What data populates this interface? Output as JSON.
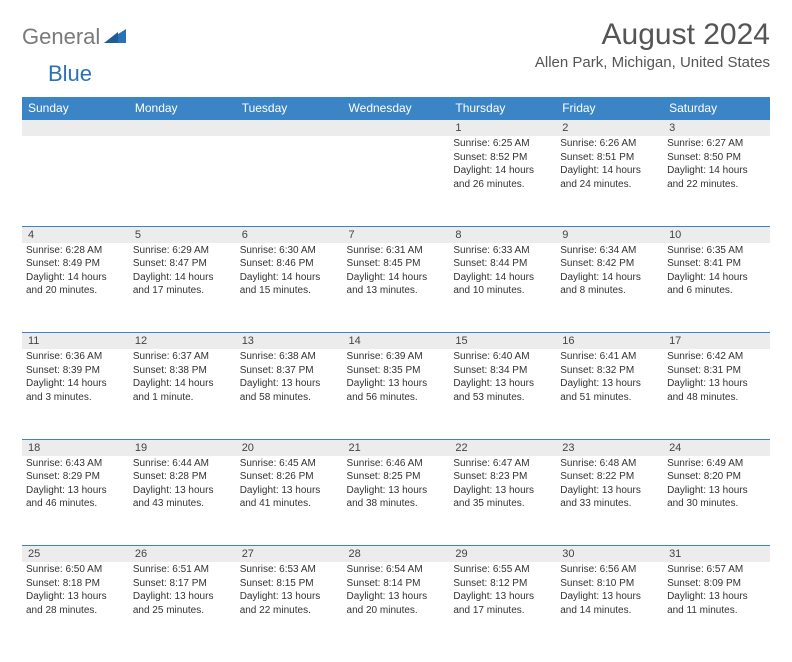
{
  "logo": {
    "gray": "General",
    "blue": "Blue"
  },
  "title": "August 2024",
  "location": "Allen Park, Michigan, United States",
  "colors": {
    "header_bg": "#3b85c6",
    "header_text": "#ffffff",
    "daynum_bg": "#ececec",
    "divider": "#3b85c6",
    "text": "#333333",
    "logo_gray": "#7a7a7a",
    "logo_blue": "#2a72b5"
  },
  "weekdays": [
    "Sunday",
    "Monday",
    "Tuesday",
    "Wednesday",
    "Thursday",
    "Friday",
    "Saturday"
  ],
  "weeks": [
    {
      "nums": [
        "",
        "",
        "",
        "",
        "1",
        "2",
        "3"
      ],
      "cells": [
        null,
        null,
        null,
        null,
        {
          "sunrise": "6:25 AM",
          "sunset": "8:52 PM",
          "daylight": "14 hours and 26 minutes."
        },
        {
          "sunrise": "6:26 AM",
          "sunset": "8:51 PM",
          "daylight": "14 hours and 24 minutes."
        },
        {
          "sunrise": "6:27 AM",
          "sunset": "8:50 PM",
          "daylight": "14 hours and 22 minutes."
        }
      ]
    },
    {
      "nums": [
        "4",
        "5",
        "6",
        "7",
        "8",
        "9",
        "10"
      ],
      "cells": [
        {
          "sunrise": "6:28 AM",
          "sunset": "8:49 PM",
          "daylight": "14 hours and 20 minutes."
        },
        {
          "sunrise": "6:29 AM",
          "sunset": "8:47 PM",
          "daylight": "14 hours and 17 minutes."
        },
        {
          "sunrise": "6:30 AM",
          "sunset": "8:46 PM",
          "daylight": "14 hours and 15 minutes."
        },
        {
          "sunrise": "6:31 AM",
          "sunset": "8:45 PM",
          "daylight": "14 hours and 13 minutes."
        },
        {
          "sunrise": "6:33 AM",
          "sunset": "8:44 PM",
          "daylight": "14 hours and 10 minutes."
        },
        {
          "sunrise": "6:34 AM",
          "sunset": "8:42 PM",
          "daylight": "14 hours and 8 minutes."
        },
        {
          "sunrise": "6:35 AM",
          "sunset": "8:41 PM",
          "daylight": "14 hours and 6 minutes."
        }
      ]
    },
    {
      "nums": [
        "11",
        "12",
        "13",
        "14",
        "15",
        "16",
        "17"
      ],
      "cells": [
        {
          "sunrise": "6:36 AM",
          "sunset": "8:39 PM",
          "daylight": "14 hours and 3 minutes."
        },
        {
          "sunrise": "6:37 AM",
          "sunset": "8:38 PM",
          "daylight": "14 hours and 1 minute."
        },
        {
          "sunrise": "6:38 AM",
          "sunset": "8:37 PM",
          "daylight": "13 hours and 58 minutes."
        },
        {
          "sunrise": "6:39 AM",
          "sunset": "8:35 PM",
          "daylight": "13 hours and 56 minutes."
        },
        {
          "sunrise": "6:40 AM",
          "sunset": "8:34 PM",
          "daylight": "13 hours and 53 minutes."
        },
        {
          "sunrise": "6:41 AM",
          "sunset": "8:32 PM",
          "daylight": "13 hours and 51 minutes."
        },
        {
          "sunrise": "6:42 AM",
          "sunset": "8:31 PM",
          "daylight": "13 hours and 48 minutes."
        }
      ]
    },
    {
      "nums": [
        "18",
        "19",
        "20",
        "21",
        "22",
        "23",
        "24"
      ],
      "cells": [
        {
          "sunrise": "6:43 AM",
          "sunset": "8:29 PM",
          "daylight": "13 hours and 46 minutes."
        },
        {
          "sunrise": "6:44 AM",
          "sunset": "8:28 PM",
          "daylight": "13 hours and 43 minutes."
        },
        {
          "sunrise": "6:45 AM",
          "sunset": "8:26 PM",
          "daylight": "13 hours and 41 minutes."
        },
        {
          "sunrise": "6:46 AM",
          "sunset": "8:25 PM",
          "daylight": "13 hours and 38 minutes."
        },
        {
          "sunrise": "6:47 AM",
          "sunset": "8:23 PM",
          "daylight": "13 hours and 35 minutes."
        },
        {
          "sunrise": "6:48 AM",
          "sunset": "8:22 PM",
          "daylight": "13 hours and 33 minutes."
        },
        {
          "sunrise": "6:49 AM",
          "sunset": "8:20 PM",
          "daylight": "13 hours and 30 minutes."
        }
      ]
    },
    {
      "nums": [
        "25",
        "26",
        "27",
        "28",
        "29",
        "30",
        "31"
      ],
      "cells": [
        {
          "sunrise": "6:50 AM",
          "sunset": "8:18 PM",
          "daylight": "13 hours and 28 minutes."
        },
        {
          "sunrise": "6:51 AM",
          "sunset": "8:17 PM",
          "daylight": "13 hours and 25 minutes."
        },
        {
          "sunrise": "6:53 AM",
          "sunset": "8:15 PM",
          "daylight": "13 hours and 22 minutes."
        },
        {
          "sunrise": "6:54 AM",
          "sunset": "8:14 PM",
          "daylight": "13 hours and 20 minutes."
        },
        {
          "sunrise": "6:55 AM",
          "sunset": "8:12 PM",
          "daylight": "13 hours and 17 minutes."
        },
        {
          "sunrise": "6:56 AM",
          "sunset": "8:10 PM",
          "daylight": "13 hours and 14 minutes."
        },
        {
          "sunrise": "6:57 AM",
          "sunset": "8:09 PM",
          "daylight": "13 hours and 11 minutes."
        }
      ]
    }
  ]
}
